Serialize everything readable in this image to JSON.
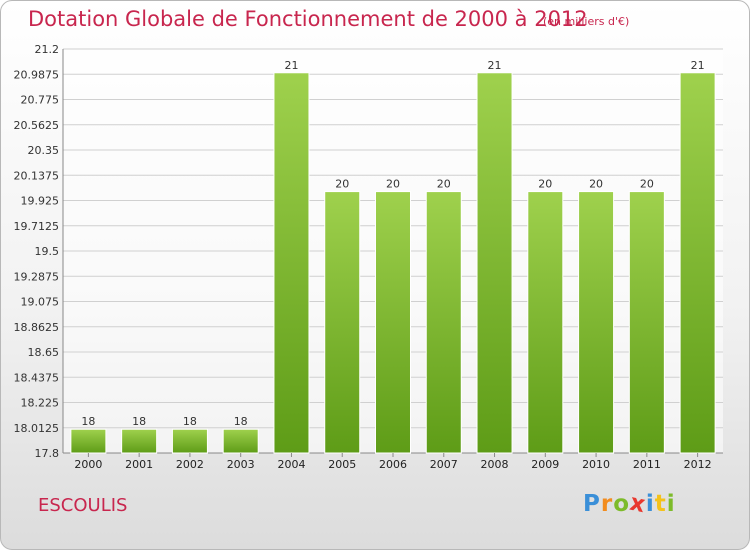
{
  "title": "Dotation Globale de Fonctionnement de 2000 à 2012",
  "unit": "(en milliers d'€)",
  "commune": "ESCOULIS",
  "logo": {
    "letters": [
      "P",
      "r",
      "o",
      "x",
      "i",
      "t",
      "i"
    ],
    "colors": [
      "#3a8fd8",
      "#f28c1e",
      "#7dbb2a",
      "#e8382e",
      "#3a8fd8",
      "#f4c21b",
      "#7dbb2a"
    ]
  },
  "colors": {
    "title": "#c8264e",
    "bar_light": "#9fd14d",
    "bar_dark": "#5e9c17",
    "grid": "#d0d0d0"
  },
  "chart_data": {
    "type": "bar",
    "categories": [
      "2000",
      "2001",
      "2002",
      "2003",
      "2004",
      "2005",
      "2006",
      "2007",
      "2008",
      "2009",
      "2010",
      "2011",
      "2012"
    ],
    "values": [
      18,
      18,
      18,
      18,
      21,
      20,
      20,
      20,
      21,
      20,
      20,
      20,
      21
    ],
    "value_labels": [
      "18",
      "18",
      "18",
      "18",
      "21",
      "20",
      "20",
      "20",
      "21",
      "20",
      "20",
      "20",
      "21"
    ],
    "y_ticks": [
      "17.8",
      "18.0125",
      "18.225",
      "18.4375",
      "18.65",
      "18.8625",
      "19.075",
      "19.2875",
      "19.5",
      "19.7125",
      "19.925",
      "20.1375",
      "20.35",
      "20.5625",
      "20.775",
      "20.9875",
      "21.2"
    ],
    "ylim": [
      17.8,
      21.2
    ],
    "grid": true,
    "xlabel": "",
    "ylabel": ""
  }
}
